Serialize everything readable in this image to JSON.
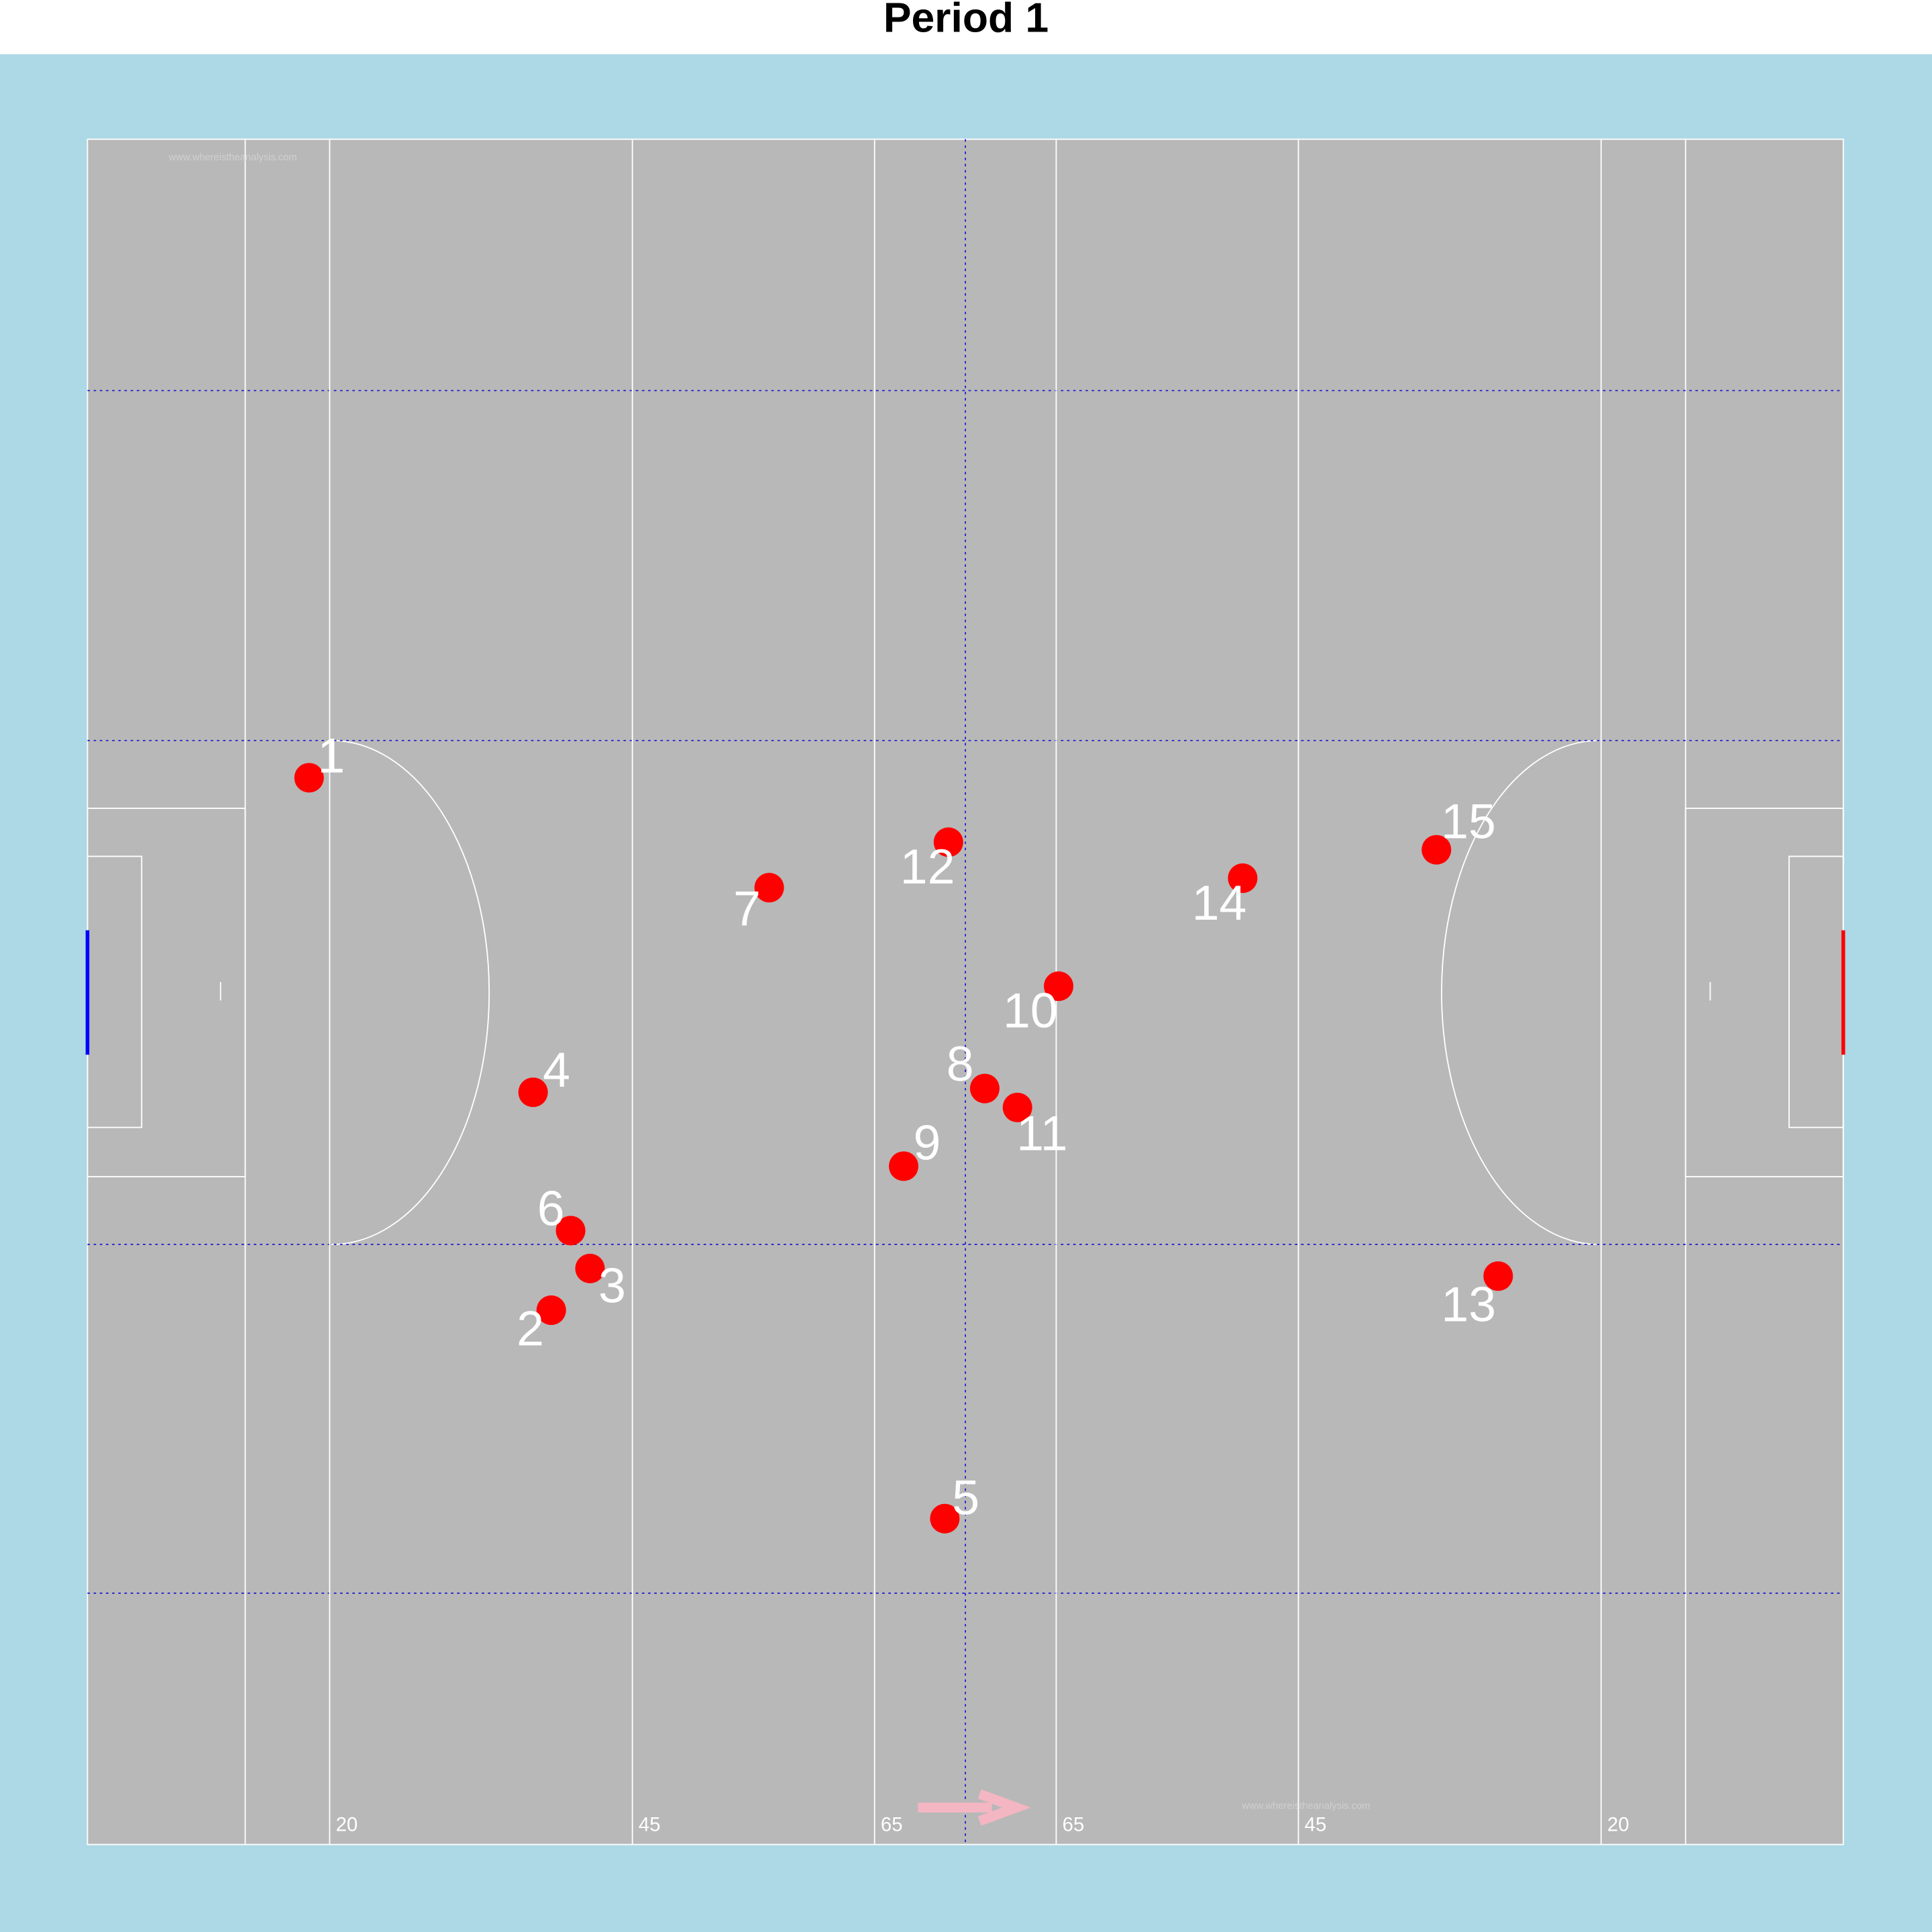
{
  "chart_data": {
    "type": "scatter",
    "title": "Period 1",
    "x": [
      18.3,
      38.3,
      41.5,
      36.8,
      70.8,
      39.9,
      56.3,
      74.1,
      67.4,
      80.2,
      76.8,
      71.1,
      116.5,
      95.4,
      111.4
    ],
    "values": [
      56.3,
      28.2,
      30.4,
      39.7,
      17.2,
      32.4,
      50.5,
      39.9,
      35.8,
      45.3,
      38.9,
      52.9,
      30.0,
      51.0,
      52.5
    ],
    "labels": [
      "1",
      "2",
      "3",
      "4",
      "5",
      "6",
      "7",
      "8",
      "9",
      "10",
      "11",
      "12",
      "13",
      "14",
      "15"
    ],
    "color": "#ff0000",
    "xlim": [
      0,
      145
    ],
    "ylim": [
      0,
      90
    ],
    "xticks": [
      20,
      45,
      65,
      {
        "value": 80,
        "label": "65"
      },
      {
        "value": 100,
        "label": "45"
      },
      {
        "value": 125,
        "label": "20"
      }
    ],
    "watermark": "www.whereistheanalysis.com"
  }
}
